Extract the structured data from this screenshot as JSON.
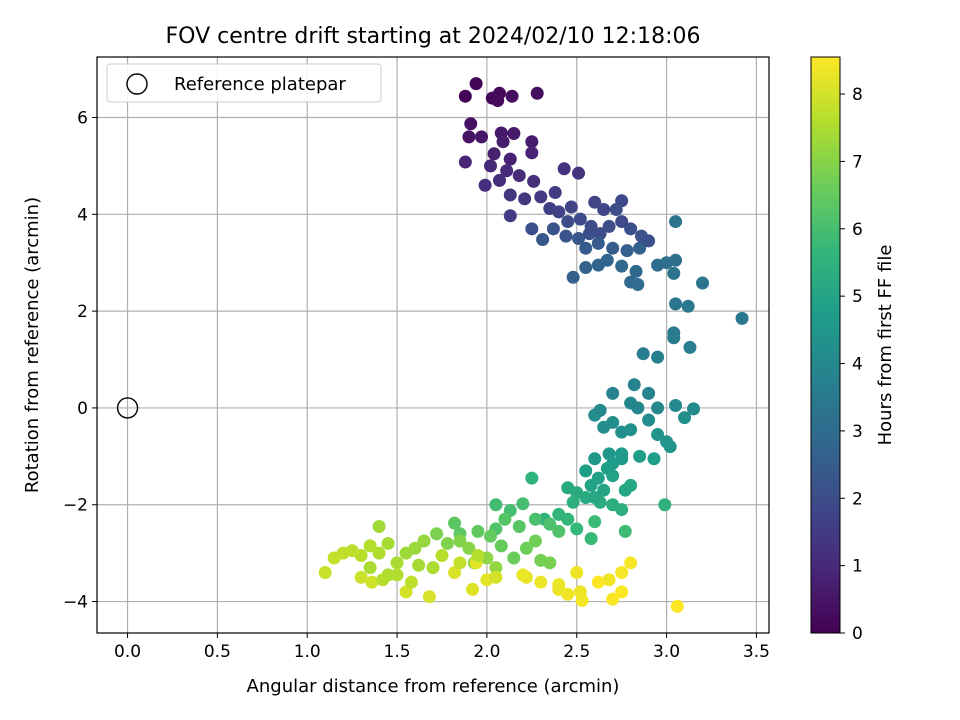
{
  "chart_data": {
    "type": "scatter",
    "title": "FOV centre drift starting at 2024/02/10 12:18:06",
    "xlabel": "Angular distance from reference (arcmin)",
    "ylabel": "Rotation from reference (arcmin)",
    "xlim": [
      -0.17,
      3.57
    ],
    "ylim": [
      -4.65,
      7.25
    ],
    "xticks": [
      "0.0",
      "0.5",
      "1.0",
      "1.5",
      "2.0",
      "2.5",
      "3.0",
      "3.5"
    ],
    "xtick_values": [
      0,
      0.5,
      1.0,
      1.5,
      2.0,
      2.5,
      3.0,
      3.5
    ],
    "yticks": [
      "−4",
      "−2",
      "0",
      "2",
      "4",
      "6"
    ],
    "ytick_values": [
      -4,
      -2,
      0,
      2,
      4,
      6
    ],
    "grid": true,
    "legend": {
      "position": "top-left",
      "entries": [
        "Reference platepar"
      ]
    },
    "reference_point": {
      "x": 0,
      "y": 0
    },
    "colorbar": {
      "label": "Hours from first FF file",
      "colormap": "viridis",
      "range": [
        0,
        8.55
      ],
      "ticks": [
        "0",
        "1",
        "2",
        "3",
        "4",
        "5",
        "6",
        "7",
        "8"
      ],
      "tick_values": [
        0,
        1,
        2,
        3,
        4,
        5,
        6,
        7,
        8
      ]
    },
    "points": [
      [
        1.88,
        6.44,
        0.05
      ],
      [
        1.94,
        6.7,
        0.1
      ],
      [
        2.03,
        6.4,
        0.15
      ],
      [
        2.07,
        6.5,
        0.2
      ],
      [
        2.06,
        6.35,
        0.25
      ],
      [
        2.14,
        6.44,
        0.3
      ],
      [
        2.28,
        6.5,
        0.35
      ],
      [
        1.91,
        5.87,
        0.4
      ],
      [
        1.9,
        5.6,
        0.45
      ],
      [
        1.97,
        5.6,
        0.5
      ],
      [
        2.08,
        5.68,
        0.55
      ],
      [
        2.15,
        5.67,
        0.6
      ],
      [
        2.09,
        5.5,
        0.65
      ],
      [
        2.25,
        5.5,
        0.7
      ],
      [
        2.04,
        5.25,
        0.75
      ],
      [
        2.13,
        5.14,
        0.8
      ],
      [
        2.25,
        5.27,
        0.85
      ],
      [
        1.88,
        5.08,
        0.9
      ],
      [
        2.02,
        5.0,
        0.95
      ],
      [
        2.11,
        4.9,
        1.0
      ],
      [
        2.18,
        4.8,
        1.05
      ],
      [
        2.07,
        4.7,
        1.1
      ],
      [
        1.99,
        4.6,
        1.15
      ],
      [
        2.26,
        4.68,
        1.2
      ],
      [
        2.43,
        4.94,
        1.25
      ],
      [
        2.51,
        4.85,
        1.3
      ],
      [
        2.13,
        4.4,
        1.35
      ],
      [
        2.21,
        4.32,
        1.4
      ],
      [
        2.3,
        4.36,
        1.45
      ],
      [
        2.38,
        4.45,
        1.5
      ],
      [
        2.13,
        3.97,
        1.55
      ],
      [
        2.35,
        4.12,
        1.6
      ],
      [
        2.4,
        4.05,
        1.65
      ],
      [
        2.47,
        4.15,
        1.7
      ],
      [
        2.6,
        4.25,
        1.75
      ],
      [
        2.65,
        4.1,
        1.8
      ],
      [
        2.75,
        4.28,
        1.85
      ],
      [
        2.52,
        3.9,
        1.9
      ],
      [
        2.58,
        3.75,
        1.95
      ],
      [
        2.63,
        3.6,
        2.0
      ],
      [
        2.72,
        4.1,
        2.05
      ],
      [
        2.8,
        3.7,
        2.1
      ],
      [
        2.86,
        3.55,
        2.15
      ],
      [
        2.37,
        3.7,
        2.2
      ],
      [
        2.44,
        3.55,
        2.25
      ],
      [
        2.31,
        3.48,
        2.3
      ],
      [
        2.51,
        3.5,
        2.35
      ],
      [
        2.55,
        3.3,
        2.4
      ],
      [
        2.62,
        3.4,
        2.45
      ],
      [
        2.7,
        3.3,
        2.5
      ],
      [
        2.78,
        3.25,
        2.55
      ],
      [
        2.85,
        3.3,
        2.6
      ],
      [
        2.48,
        2.7,
        2.65
      ],
      [
        2.55,
        2.9,
        2.7
      ],
      [
        2.62,
        2.95,
        2.75
      ],
      [
        2.67,
        3.05,
        2.8
      ],
      [
        2.75,
        2.93,
        2.85
      ],
      [
        2.83,
        2.82,
        2.9
      ],
      [
        2.8,
        2.6,
        2.95
      ],
      [
        2.84,
        2.55,
        3.0
      ],
      [
        2.95,
        2.95,
        3.05
      ],
      [
        3.0,
        3.0,
        3.1
      ],
      [
        3.05,
        3.05,
        3.15
      ],
      [
        3.05,
        3.85,
        3.2
      ],
      [
        3.04,
        2.78,
        3.25
      ],
      [
        3.2,
        2.58,
        3.3
      ],
      [
        3.05,
        2.15,
        3.35
      ],
      [
        3.12,
        2.1,
        3.4
      ],
      [
        3.42,
        1.85,
        3.45
      ],
      [
        3.04,
        1.55,
        3.5
      ],
      [
        3.04,
        1.45,
        3.55
      ],
      [
        3.13,
        1.25,
        3.6
      ],
      [
        2.87,
        1.12,
        3.65
      ],
      [
        2.95,
        1.05,
        3.7
      ],
      [
        2.7,
        0.3,
        3.75
      ],
      [
        2.82,
        0.48,
        3.8
      ],
      [
        2.9,
        0.3,
        3.85
      ],
      [
        2.8,
        0.1,
        3.9
      ],
      [
        2.84,
        0.0,
        3.95
      ],
      [
        2.95,
        0.0,
        4.0
      ],
      [
        3.05,
        0.05,
        4.05
      ],
      [
        3.15,
        -0.02,
        4.1
      ],
      [
        2.6,
        -0.15,
        4.15
      ],
      [
        2.65,
        -0.4,
        4.2
      ],
      [
        2.75,
        -0.5,
        4.25
      ],
      [
        2.8,
        -0.45,
        4.3
      ],
      [
        2.95,
        -0.55,
        4.35
      ],
      [
        3.0,
        -0.7,
        4.4
      ],
      [
        3.02,
        -0.8,
        4.45
      ],
      [
        2.68,
        -0.95,
        4.5
      ],
      [
        2.6,
        -1.05,
        4.55
      ],
      [
        2.7,
        -1.15,
        4.6
      ],
      [
        2.75,
        -1.05,
        4.65
      ],
      [
        2.85,
        -1.0,
        4.7
      ],
      [
        2.93,
        -1.05,
        4.75
      ],
      [
        2.55,
        -1.3,
        4.8
      ],
      [
        2.62,
        -1.45,
        4.85
      ],
      [
        2.7,
        -1.4,
        4.9
      ],
      [
        2.58,
        -1.6,
        4.95
      ],
      [
        2.65,
        -1.7,
        5.0
      ],
      [
        2.77,
        -1.7,
        5.05
      ],
      [
        2.8,
        -1.6,
        5.1
      ],
      [
        2.45,
        -1.65,
        5.15
      ],
      [
        2.5,
        -1.75,
        5.2
      ],
      [
        2.55,
        -1.85,
        5.25
      ],
      [
        2.63,
        -1.95,
        5.3
      ],
      [
        2.7,
        -2.0,
        5.35
      ],
      [
        2.75,
        -2.1,
        5.4
      ],
      [
        2.99,
        -2.0,
        5.45
      ],
      [
        2.25,
        -1.45,
        5.5
      ],
      [
        2.32,
        -2.3,
        5.55
      ],
      [
        2.4,
        -2.2,
        5.6
      ],
      [
        2.45,
        -2.3,
        5.65
      ],
      [
        2.5,
        -2.5,
        5.7
      ],
      [
        2.58,
        -2.7,
        5.75
      ],
      [
        2.6,
        -2.35,
        5.8
      ],
      [
        2.77,
        -2.55,
        5.85
      ],
      [
        2.05,
        -2.0,
        5.9
      ],
      [
        2.13,
        -2.12,
        5.95
      ],
      [
        2.2,
        -1.98,
        6.0
      ],
      [
        2.27,
        -2.3,
        6.05
      ],
      [
        2.35,
        -2.4,
        6.1
      ],
      [
        2.4,
        -2.55,
        6.15
      ],
      [
        2.05,
        -2.5,
        6.2
      ],
      [
        2.1,
        -2.3,
        6.25
      ],
      [
        2.18,
        -2.45,
        6.3
      ],
      [
        1.82,
        -2.38,
        6.35
      ],
      [
        1.85,
        -2.6,
        6.4
      ],
      [
        1.95,
        -2.55,
        6.45
      ],
      [
        2.02,
        -2.65,
        6.5
      ],
      [
        2.08,
        -2.85,
        6.55
      ],
      [
        2.15,
        -3.1,
        6.6
      ],
      [
        2.22,
        -2.9,
        6.65
      ],
      [
        2.27,
        -2.75,
        6.7
      ],
      [
        2.3,
        -3.15,
        6.75
      ],
      [
        2.35,
        -3.2,
        6.8
      ],
      [
        1.72,
        -2.6,
        6.85
      ],
      [
        1.78,
        -2.8,
        6.9
      ],
      [
        1.85,
        -2.75,
        6.95
      ],
      [
        1.9,
        -2.9,
        7.0
      ],
      [
        1.93,
        -3.2,
        7.05
      ],
      [
        2.0,
        -3.1,
        7.1
      ],
      [
        2.05,
        -3.3,
        7.15
      ],
      [
        1.65,
        -2.75,
        7.2
      ],
      [
        1.6,
        -2.9,
        7.25
      ],
      [
        1.55,
        -3.0,
        7.3
      ],
      [
        1.4,
        -2.45,
        7.35
      ],
      [
        1.45,
        -2.8,
        7.4
      ],
      [
        1.5,
        -3.2,
        7.45
      ],
      [
        1.45,
        -3.45,
        7.5
      ],
      [
        1.4,
        -3.0,
        7.55
      ],
      [
        1.35,
        -2.85,
        7.6
      ],
      [
        1.3,
        -3.05,
        7.65
      ],
      [
        1.25,
        -2.95,
        7.7
      ],
      [
        1.2,
        -3.0,
        7.75
      ],
      [
        1.15,
        -3.1,
        7.8
      ],
      [
        1.1,
        -3.4,
        7.85
      ],
      [
        1.3,
        -3.5,
        7.9
      ],
      [
        1.36,
        -3.6,
        7.95
      ],
      [
        1.55,
        -3.8,
        8.0
      ],
      [
        1.68,
        -3.9,
        8.05
      ],
      [
        1.82,
        -3.4,
        8.1
      ],
      [
        1.92,
        -3.75,
        8.15
      ],
      [
        2.0,
        -3.55,
        8.2
      ],
      [
        2.22,
        -3.5,
        8.25
      ],
      [
        2.3,
        -3.6,
        8.3
      ],
      [
        2.4,
        -3.75,
        8.35
      ],
      [
        2.45,
        -3.85,
        8.4
      ],
      [
        2.53,
        -3.98,
        8.45
      ],
      [
        2.7,
        -3.95,
        8.5
      ],
      [
        2.62,
        -3.6,
        8.55
      ],
      [
        2.75,
        -3.8,
        8.5
      ],
      [
        2.8,
        -3.2,
        8.45
      ],
      [
        3.06,
        -4.1,
        8.55
      ],
      [
        1.94,
        -3.2,
        8.2
      ],
      [
        2.2,
        -3.45,
        8.3
      ],
      [
        2.5,
        -3.4,
        8.35
      ],
      [
        2.68,
        -3.55,
        8.4
      ],
      [
        2.75,
        -3.4,
        8.45
      ],
      [
        2.4,
        -3.65,
        8.3
      ],
      [
        2.52,
        -3.8,
        8.35
      ],
      [
        1.75,
        -3.05,
        7.65
      ],
      [
        1.85,
        -3.2,
        7.8
      ],
      [
        1.95,
        -3.05,
        7.6
      ],
      [
        2.05,
        -3.5,
        8.0
      ],
      [
        1.62,
        -3.25,
        7.4
      ],
      [
        1.7,
        -3.3,
        7.5
      ],
      [
        1.5,
        -3.45,
        7.55
      ],
      [
        1.35,
        -3.3,
        7.45
      ],
      [
        1.58,
        -3.6,
        7.7
      ],
      [
        1.42,
        -3.55,
        7.6
      ],
      [
        2.48,
        -1.95,
        5.4
      ],
      [
        2.6,
        -1.85,
        5.1
      ],
      [
        2.67,
        -1.25,
        4.8
      ],
      [
        2.75,
        -0.95,
        4.6
      ],
      [
        2.63,
        -0.05,
        4.05
      ],
      [
        2.7,
        -0.3,
        4.2
      ],
      [
        2.9,
        -0.25,
        4.15
      ],
      [
        3.1,
        -0.2,
        4.25
      ],
      [
        2.25,
        3.7,
        2.05
      ],
      [
        2.45,
        3.85,
        1.95
      ],
      [
        2.57,
        3.6,
        2.05
      ],
      [
        2.68,
        3.75,
        2.0
      ],
      [
        2.75,
        3.85,
        1.9
      ],
      [
        2.9,
        3.45,
        2.1
      ]
    ]
  }
}
